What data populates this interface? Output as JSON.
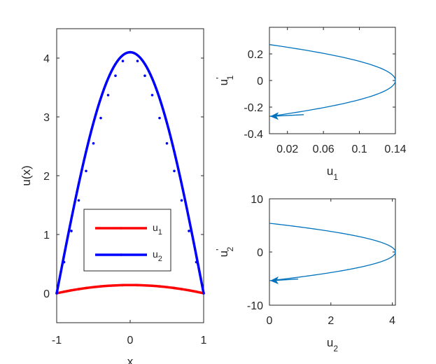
{
  "chart_data": [
    {
      "type": "line",
      "id": "main",
      "xlabel": "x",
      "ylabel": "u(x)",
      "xlim": [
        -1,
        1
      ],
      "ylim": [
        -0.5,
        4.5
      ],
      "xticks": [
        -1,
        0,
        1
      ],
      "yticks": [
        0,
        1,
        2,
        3,
        4
      ],
      "grid": false,
      "legend_position": "lower-center",
      "series": [
        {
          "name": "u",
          "subscript": "1",
          "color": "#ff0000",
          "peak": 0.14,
          "x": [
            -1,
            -0.9,
            -0.8,
            -0.7,
            -0.6,
            -0.5,
            -0.4,
            -0.3,
            -0.2,
            -0.1,
            0,
            0.1,
            0.2,
            0.3,
            0.4,
            0.5,
            0.6,
            0.7,
            0.8,
            0.9,
            1
          ],
          "y": [
            0,
            0.027,
            0.051,
            0.071,
            0.09,
            0.105,
            0.118,
            0.128,
            0.135,
            0.139,
            0.14,
            0.139,
            0.135,
            0.128,
            0.118,
            0.105,
            0.09,
            0.071,
            0.051,
            0.027,
            0
          ]
        },
        {
          "name": "u",
          "subscript": "2",
          "color": "#0000ff",
          "peak": 4.1,
          "x": [
            -1,
            -0.9,
            -0.8,
            -0.7,
            -0.6,
            -0.5,
            -0.4,
            -0.3,
            -0.2,
            -0.1,
            0,
            0.1,
            0.2,
            0.3,
            0.4,
            0.5,
            0.6,
            0.7,
            0.8,
            0.9,
            1
          ],
          "y": [
            0,
            0.53,
            1.06,
            1.58,
            2.08,
            2.55,
            2.98,
            3.37,
            3.7,
            3.95,
            4.1,
            3.95,
            3.7,
            3.37,
            2.98,
            2.55,
            2.08,
            1.58,
            1.06,
            0.53,
            0
          ]
        }
      ]
    },
    {
      "type": "line",
      "id": "phase1",
      "xlabel": "u",
      "xlabel_sub": "1",
      "ylabel": "u",
      "ylabel_sub": "1",
      "ylabel_prime": "'",
      "xlim": [
        0,
        0.14
      ],
      "ylim": [
        -0.4,
        0.4
      ],
      "xticks": [
        0.02,
        0.06,
        0.1,
        0.14
      ],
      "xticklabels": [
        "0.02",
        "0.06",
        "0.1",
        "0.14"
      ],
      "yticks": [
        -0.4,
        -0.2,
        0,
        0.2
      ],
      "yticklabels": [
        "-0.4",
        "-0.2",
        "0",
        "0.2"
      ],
      "color": "#0072bd",
      "vertex": [
        0.14,
        0
      ],
      "start": [
        0,
        0.27
      ],
      "end": [
        0,
        -0.27
      ],
      "arrow": "end"
    },
    {
      "type": "line",
      "id": "phase2",
      "xlabel": "u",
      "xlabel_sub": "2",
      "ylabel": "u",
      "ylabel_sub": "2",
      "ylabel_prime": "'",
      "xlim": [
        0,
        4.1
      ],
      "ylim": [
        -10,
        10
      ],
      "xticks": [
        0,
        2,
        4
      ],
      "xticklabels": [
        "0",
        "2",
        "4"
      ],
      "yticks": [
        -10,
        0,
        10
      ],
      "yticklabels": [
        "-10",
        "0",
        "10"
      ],
      "color": "#0072bd",
      "vertex": [
        4.1,
        0
      ],
      "start": [
        0,
        5.4
      ],
      "end": [
        0,
        -5.4
      ],
      "arrow": "end"
    }
  ]
}
